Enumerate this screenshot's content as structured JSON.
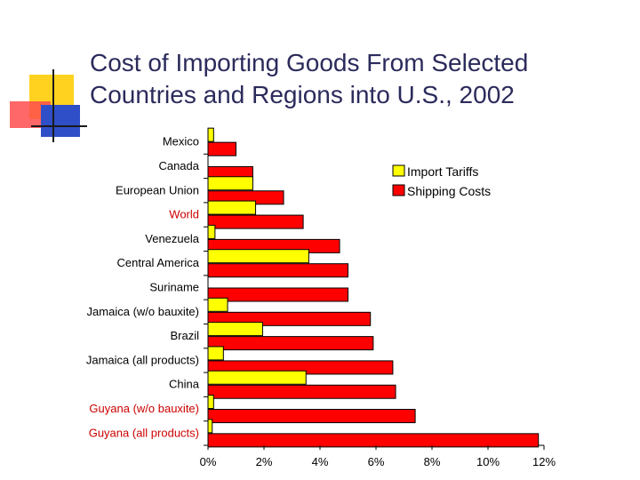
{
  "title_lines": [
    "Cost of Importing Goods From Selected",
    "Countries and Regions into U.S., 2002"
  ],
  "colors": {
    "title": "#2b2b5c",
    "accent_yellow": "#ffd21f",
    "accent_red": "#ff4d4d",
    "accent_blue": "#2f4fc8",
    "tariff_fill": "#ffff00",
    "shipping_fill": "#ff0000",
    "label_default": "#000000",
    "label_highlight": "#cc0000"
  },
  "chart_data": {
    "type": "bar",
    "orientation": "horizontal",
    "categories": [
      "Mexico",
      "Canada",
      "European Union",
      "World",
      "Venezuela",
      "Central America",
      "Suriname",
      "Jamaica (w/o bauxite)",
      "Brazil",
      "Jamaica (all products)",
      "China",
      "Guyana (w/o bauxite)",
      "Guyana (all products)"
    ],
    "highlighted_categories": [
      "World",
      "Guyana (w/o bauxite)",
      "Guyana (all products)"
    ],
    "series": [
      {
        "name": "Import Tariffs",
        "color": "#ffff00",
        "values": [
          0.2,
          0.0,
          1.6,
          1.7,
          0.25,
          3.6,
          0.0,
          0.7,
          1.95,
          0.55,
          3.5,
          0.2,
          0.15
        ]
      },
      {
        "name": "Shipping Costs",
        "color": "#ff0000",
        "values": [
          1.0,
          1.6,
          2.7,
          3.4,
          4.7,
          5.0,
          5.0,
          5.8,
          5.9,
          6.6,
          6.7,
          7.4,
          11.8
        ]
      }
    ],
    "xlim": [
      0,
      12
    ],
    "xticks": [
      "0%",
      "2%",
      "4%",
      "6%",
      "8%",
      "10%",
      "12%"
    ],
    "xlabel": "",
    "ylabel": "",
    "legend": "top-right",
    "grid": false
  }
}
